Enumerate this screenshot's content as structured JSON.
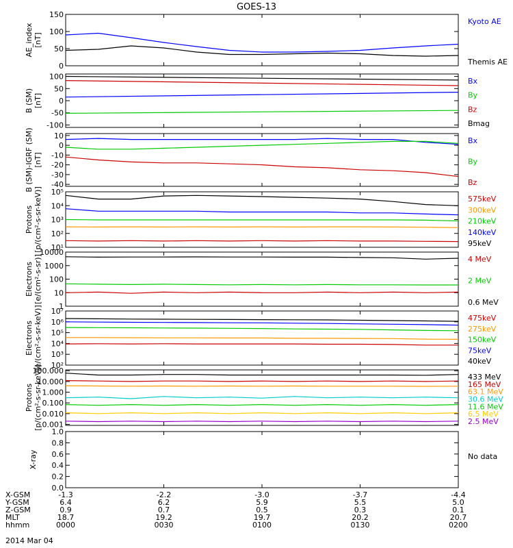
{
  "title": "GOES-13",
  "date": "2014 Mar 04",
  "no_data": "No data",
  "ephemeris": {
    "rows": [
      "X-GSM",
      "Y-GSM",
      "Z-GSM",
      "MLT",
      "hhmm"
    ],
    "columns": [
      [
        "-1.3",
        "6.4",
        "0.9",
        "18.7",
        "0000"
      ],
      [
        "-2.2",
        "6.2",
        "0.7",
        "19.2",
        "0030"
      ],
      [
        "-3.0",
        "5.9",
        "0.5",
        "19.7",
        "0100"
      ],
      [
        "-3.7",
        "5.5",
        "0.3",
        "20.2",
        "0130"
      ],
      [
        "-4.4",
        "5.0",
        "0.1",
        "20.7",
        "0200"
      ]
    ]
  },
  "chart_data": [
    {
      "type": "line",
      "scale": "linear",
      "ylabel": [
        "AE_index",
        "[nT]"
      ],
      "ylim": [
        0,
        150
      ],
      "yticks": [
        0,
        50,
        100,
        150
      ],
      "ytick_labels": [
        "0",
        "50",
        "100",
        "150"
      ],
      "x": [
        0,
        10,
        20,
        30,
        40,
        50,
        60,
        70,
        80,
        90,
        100,
        110,
        120
      ],
      "series": [
        {
          "name": "Kyoto AE",
          "color": "#0000ff",
          "values": [
            90,
            95,
            82,
            68,
            56,
            45,
            40,
            40,
            42,
            45,
            52,
            58,
            63
          ]
        },
        {
          "name": "Themis AE",
          "color": "#000000",
          "values": [
            45,
            48,
            58,
            52,
            40,
            33,
            33,
            35,
            37,
            35,
            30,
            28,
            30
          ]
        }
      ]
    },
    {
      "type": "line",
      "scale": "linear",
      "ylabel": [
        "B (SM)",
        "[nT]"
      ],
      "ylim": [
        -110,
        110
      ],
      "yticks": [
        -100,
        -50,
        0,
        50,
        100
      ],
      "ytick_labels": [
        "-100",
        "-50",
        "0",
        "50",
        "100"
      ],
      "x": [
        0,
        120
      ],
      "series": [
        {
          "name": "Bx",
          "color": "#0000ff",
          "values": [
            15,
            35
          ]
        },
        {
          "name": "By",
          "color": "#00cc00",
          "values": [
            -52,
            -40
          ]
        },
        {
          "name": "Bz",
          "color": "#cc0000",
          "values": [
            83,
            62
          ]
        },
        {
          "name": "Bmag",
          "color": "#000000",
          "values": [
            100,
            85
          ]
        }
      ]
    },
    {
      "type": "line",
      "scale": "linear",
      "ylabel": [
        "B (SM)-IGRF (SM)",
        "[nT]"
      ],
      "ylim": [
        -42,
        12
      ],
      "yticks": [
        -40,
        -30,
        -20,
        -10,
        0,
        10
      ],
      "ytick_labels": [
        "-40",
        "-30",
        "-20",
        "-10",
        "0",
        "10"
      ],
      "x": [
        0,
        10,
        20,
        30,
        40,
        50,
        60,
        70,
        80,
        90,
        100,
        110,
        120
      ],
      "series": [
        {
          "name": "Bx",
          "color": "#0000ff",
          "values": [
            6,
            7,
            6,
            6,
            6,
            6,
            6,
            6,
            7,
            6,
            6,
            3,
            1
          ]
        },
        {
          "name": "By",
          "color": "#00cc00",
          "values": [
            -2,
            -4,
            -4,
            -3,
            -2,
            -1,
            0,
            1,
            2,
            3,
            4,
            4,
            2
          ]
        },
        {
          "name": "Bz",
          "color": "#cc0000",
          "values": [
            -12,
            -15,
            -17,
            -18,
            -18,
            -19,
            -20,
            -22,
            -23,
            -25,
            -26,
            -28,
            -32
          ]
        }
      ]
    },
    {
      "type": "line",
      "scale": "log",
      "ylabel": [
        "Protons",
        "[p/(cm²-s-sr-keV)]"
      ],
      "ylim": [
        10,
        100000
      ],
      "yticks": [
        10,
        100,
        1000,
        10000,
        100000
      ],
      "ytick_labels": [
        "10¹",
        "10²",
        "10³",
        "10⁴",
        "10⁵"
      ],
      "x": [
        0,
        10,
        20,
        30,
        40,
        50,
        60,
        70,
        80,
        90,
        100,
        110,
        120
      ],
      "series": [
        {
          "name": "575keV",
          "color": "#cc0000",
          "values": [
            30,
            28,
            30,
            28,
            30,
            28,
            30,
            28,
            30,
            28,
            28,
            27,
            26
          ]
        },
        {
          "name": "300keV",
          "color": "#ff9900",
          "values": [
            300,
            290,
            300,
            290,
            300,
            290,
            300,
            290,
            300,
            300,
            290,
            280,
            260
          ]
        },
        {
          "name": "210keV",
          "color": "#00cc00",
          "values": [
            1000,
            950,
            950,
            950,
            950,
            950,
            950,
            950,
            950,
            950,
            950,
            900,
            800
          ]
        },
        {
          "name": "140keV",
          "color": "#0000ff",
          "values": [
            6000,
            4000,
            4000,
            4000,
            4000,
            3500,
            3500,
            3500,
            3500,
            3000,
            3000,
            2500,
            2200
          ]
        },
        {
          "name": "95keV",
          "color": "#000000",
          "values": [
            55000,
            30000,
            30000,
            50000,
            55000,
            50000,
            45000,
            40000,
            35000,
            30000,
            20000,
            12000,
            10000
          ]
        }
      ]
    },
    {
      "type": "line",
      "scale": "log",
      "ylabel": [
        "Electrons",
        "[e/(cm²-s-sr)]"
      ],
      "ylim": [
        1,
        10000
      ],
      "yticks": [
        1,
        10,
        100,
        1000,
        10000
      ],
      "ytick_labels": [
        "1",
        "10",
        "100",
        "1000",
        "10000"
      ],
      "x": [
        0,
        10,
        20,
        30,
        40,
        50,
        60,
        70,
        80,
        90,
        100,
        110,
        120
      ],
      "series": [
        {
          "name": "4 MeV",
          "color": "#cc0000",
          "values": [
            10,
            11,
            9,
            11,
            10,
            11,
            10,
            10,
            11,
            10,
            11,
            10,
            11
          ]
        },
        {
          "name": "2 MeV",
          "color": "#00cc00",
          "values": [
            45,
            42,
            40,
            42,
            40,
            38,
            40,
            38,
            40,
            38,
            38,
            37,
            37
          ]
        },
        {
          "name": "0.6 MeV",
          "color": "#000000",
          "values": [
            4500,
            4200,
            4300,
            4300,
            4400,
            4300,
            4300,
            4200,
            4200,
            4000,
            3800,
            3000,
            3500
          ]
        }
      ]
    },
    {
      "type": "line",
      "scale": "log",
      "ylabel": [
        "Electrons",
        "[e/(cm²-s-sr-keV)]"
      ],
      "ylim": [
        100,
        10000000
      ],
      "yticks": [
        100,
        1000,
        10000,
        100000,
        1000000,
        10000000
      ],
      "ytick_labels": [
        "10²",
        "10³",
        "10⁴",
        "10⁵",
        "10⁶",
        "10⁷"
      ],
      "x": [
        0,
        10,
        20,
        30,
        40,
        50,
        60,
        70,
        80,
        90,
        100,
        110,
        120
      ],
      "series": [
        {
          "name": "475keV",
          "color": "#cc0000",
          "values": [
            9000,
            9500,
            9000,
            9500,
            9000,
            9000,
            9000,
            9000,
            8500,
            8500,
            8000,
            7000,
            7000
          ]
        },
        {
          "name": "275keV",
          "color": "#ff9900",
          "values": [
            35000,
            35000,
            34000,
            33000,
            33000,
            32000,
            32000,
            30000,
            30000,
            29000,
            28000,
            25000,
            24000
          ]
        },
        {
          "name": "150keV",
          "color": "#00cc00",
          "values": [
            300000,
            290000,
            280000,
            270000,
            260000,
            250000,
            240000,
            220000,
            210000,
            200000,
            180000,
            160000,
            150000
          ]
        },
        {
          "name": "75keV",
          "color": "#0000ff",
          "values": [
            1000000,
            950000,
            900000,
            880000,
            850000,
            820000,
            800000,
            750000,
            700000,
            650000,
            600000,
            550000,
            500000
          ]
        },
        {
          "name": "40keV",
          "color": "#000000",
          "values": [
            2000000,
            1900000,
            1800000,
            1750000,
            1700000,
            1650000,
            1600000,
            1550000,
            1500000,
            1400000,
            1300000,
            1200000,
            1100000
          ]
        }
      ]
    },
    {
      "type": "line",
      "scale": "log",
      "ylabel": [
        "Protons",
        "[p/(cm²-s-sr-keV)]"
      ],
      "ylim": [
        0.0008,
        120
      ],
      "yticks": [
        0.001,
        0.01,
        0.1,
        1,
        10,
        100
      ],
      "ytick_labels": [
        "0.001",
        "0.010",
        "0.100",
        "1.000",
        "10.000",
        "100.000"
      ],
      "x": [
        0,
        10,
        20,
        30,
        40,
        50,
        60,
        70,
        80,
        90,
        100,
        110,
        120
      ],
      "series": [
        {
          "name": "433 MeV",
          "color": "#000000",
          "values": [
            60,
            40,
            40,
            45,
            45,
            40,
            40,
            40,
            40,
            40,
            40,
            38,
            45
          ]
        },
        {
          "name": "165 MeV",
          "color": "#cc0000",
          "values": [
            12,
            11,
            10,
            11,
            11,
            10,
            11,
            10,
            11,
            10,
            11,
            10,
            11
          ]
        },
        {
          "name": "63.1 MeV",
          "color": "#ff9900",
          "values": [
            4,
            3.8,
            3.6,
            3.8,
            3.6,
            3.8,
            3.6,
            3.8,
            3.6,
            3.6,
            3.6,
            3.5,
            3.6
          ]
        },
        {
          "name": "30.6 MeV",
          "color": "#00cccc",
          "values": [
            0.3,
            0.35,
            0.25,
            0.4,
            0.3,
            0.35,
            0.28,
            0.4,
            0.3,
            0.35,
            0.3,
            0.35,
            0.3
          ]
        },
        {
          "name": "11.6 MeV",
          "color": "#00cc00",
          "values": [
            0.07,
            0.06,
            0.07,
            0.06,
            0.07,
            0.06,
            0.07,
            0.06,
            0.07,
            0.06,
            0.07,
            0.06,
            0.07
          ]
        },
        {
          "name": "6.5 MeV",
          "color": "#ffcc00",
          "values": [
            0.012,
            0.01,
            0.012,
            0.01,
            0.012,
            0.01,
            0.012,
            0.01,
            0.012,
            0.01,
            0.012,
            0.01,
            0.012
          ]
        },
        {
          "name": "2.5 MeV",
          "color": "#9900cc",
          "values": [
            0.002,
            0.0018,
            0.002,
            0.0018,
            0.002,
            0.0018,
            0.002,
            0.0018,
            0.002,
            0.0018,
            0.002,
            0.0018,
            0.002
          ]
        }
      ]
    },
    {
      "type": "line",
      "scale": "linear",
      "ylabel": [
        "X-ray"
      ],
      "ylim": [
        0,
        1.0
      ],
      "yticks": [
        0,
        0.2,
        0.4,
        0.6,
        0.8,
        1.0
      ],
      "ytick_labels": [
        "0.0",
        "0.2",
        "0.4",
        "0.6",
        "0.8",
        "1.0"
      ],
      "x": [],
      "series": []
    }
  ]
}
